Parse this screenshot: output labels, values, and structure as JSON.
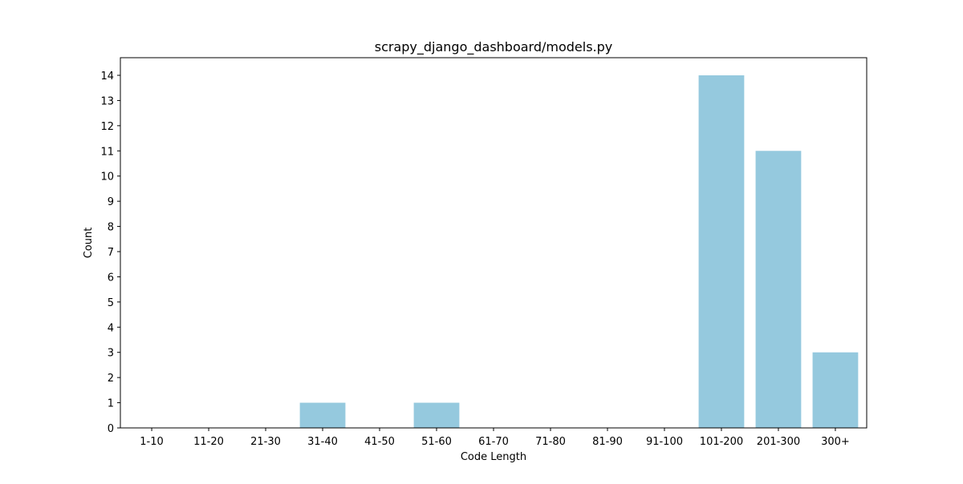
{
  "chart_data": {
    "type": "bar",
    "title": "scrapy_django_dashboard/models.py",
    "xlabel": "Code Length",
    "ylabel": "Count",
    "categories": [
      "1-10",
      "11-20",
      "21-30",
      "31-40",
      "41-50",
      "51-60",
      "61-70",
      "71-80",
      "81-90",
      "91-100",
      "101-200",
      "201-300",
      "300+"
    ],
    "values": [
      0,
      0,
      0,
      1,
      0,
      1,
      0,
      0,
      0,
      0,
      14,
      11,
      3
    ],
    "ylim": [
      0,
      14.7
    ],
    "yticks": [
      0,
      1,
      2,
      3,
      4,
      5,
      6,
      7,
      8,
      9,
      10,
      11,
      12,
      13,
      14
    ],
    "grid": false,
    "bar_color": "#95c9de"
  }
}
